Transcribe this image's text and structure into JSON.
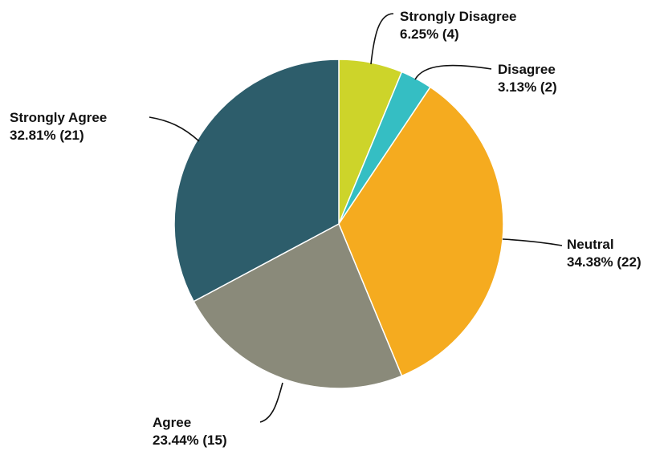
{
  "chart_data": {
    "type": "pie",
    "title": "",
    "start_angle_deg": 0,
    "direction": "clockwise",
    "slices": [
      {
        "name": "Strongly Disagree",
        "value": 4,
        "percent_label": "6.25% (4)",
        "color": "#cdd42a"
      },
      {
        "name": "Disagree",
        "value": 2,
        "percent_label": "3.13% (2)",
        "color": "#35bec3"
      },
      {
        "name": "Neutral",
        "value": 22,
        "percent_label": "34.38% (22)",
        "color": "#f5ab1f"
      },
      {
        "name": "Agree",
        "value": 15,
        "percent_label": "23.44% (15)",
        "color": "#8a8a7a"
      },
      {
        "name": "Strongly Agree",
        "value": 21,
        "percent_label": "32.81% (21)",
        "color": "#2d5d6b"
      }
    ],
    "legend": "none"
  }
}
